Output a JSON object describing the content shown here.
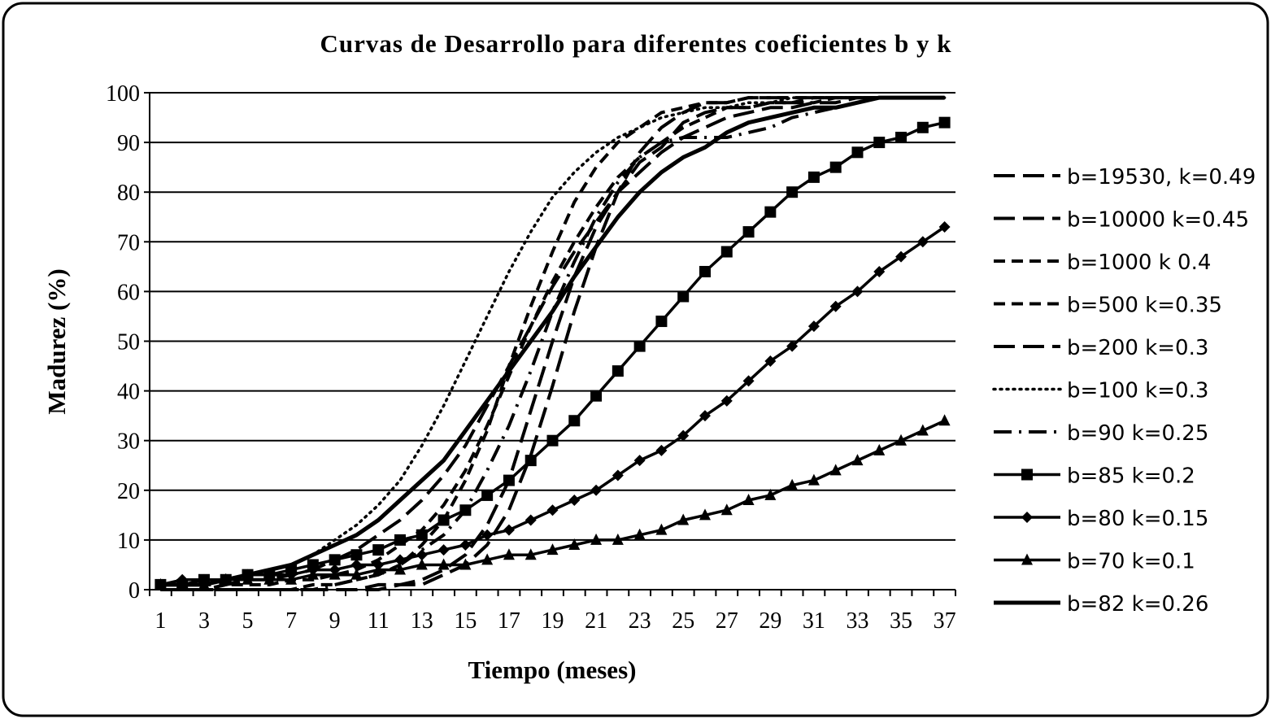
{
  "chart_data": {
    "type": "line",
    "title": "Curvas de Desarrollo para diferentes coeficientes b y k",
    "xlabel": "Tiempo (meses)",
    "ylabel": "Madurez (%)",
    "xlim": [
      1,
      37
    ],
    "ylim": [
      0,
      100
    ],
    "x_ticks": [
      "1",
      "3",
      "5",
      "7",
      "9",
      "11",
      "13",
      "15",
      "17",
      "19",
      "21",
      "23",
      "25",
      "27",
      "29",
      "31",
      "33",
      "35",
      "37"
    ],
    "y_ticks": [
      "0",
      "10",
      "20",
      "30",
      "40",
      "50",
      "60",
      "70",
      "80",
      "90",
      "100"
    ],
    "grid": "horizontal",
    "legend_position": "right",
    "x": [
      1,
      2,
      3,
      4,
      5,
      6,
      7,
      8,
      9,
      10,
      11,
      12,
      13,
      14,
      15,
      16,
      17,
      18,
      19,
      20,
      21,
      22,
      23,
      24,
      25,
      26,
      27,
      28,
      29,
      30,
      31,
      32,
      33,
      34,
      35,
      36,
      37
    ],
    "series": [
      {
        "name": "b=19530, k=0.49",
        "style": "longdash",
        "values": [
          0,
          0,
          0,
          0,
          0,
          0,
          0,
          0,
          0,
          0,
          0,
          1,
          1,
          3,
          5,
          9,
          16,
          27,
          41,
          56,
          69,
          80,
          88,
          93,
          96,
          98,
          98,
          99,
          99,
          99,
          99,
          99,
          99,
          99,
          99,
          99,
          99
        ]
      },
      {
        "name": "b=10000 k=0.45",
        "style": "longdash",
        "values": [
          0,
          0,
          0,
          0,
          0,
          0,
          0,
          0,
          0,
          0,
          1,
          1,
          2,
          4,
          7,
          13,
          22,
          36,
          50,
          63,
          73,
          80,
          86,
          89,
          94,
          96,
          97,
          97,
          98,
          98,
          99,
          99,
          99,
          99,
          99,
          99,
          99
        ]
      },
      {
        "name": "b=1000 k 0.4",
        "style": "dash",
        "values": [
          0,
          0,
          0,
          0,
          0,
          0,
          0,
          1,
          1,
          2,
          3,
          5,
          9,
          14,
          22,
          32,
          45,
          57,
          68,
          78,
          85,
          90,
          93,
          96,
          97,
          98,
          98,
          99,
          99,
          99,
          99,
          99,
          99,
          99,
          99,
          99,
          99
        ]
      },
      {
        "name": "b=500 k=0.35",
        "style": "dash",
        "values": [
          0,
          0,
          0,
          1,
          1,
          1,
          2,
          2,
          3,
          4,
          6,
          9,
          12,
          17,
          24,
          33,
          43,
          53,
          62,
          70,
          77,
          83,
          87,
          90,
          93,
          95,
          97,
          97,
          98,
          98,
          98,
          99,
          99,
          99,
          99,
          99,
          99
        ]
      },
      {
        "name": "b=200 k=0.3",
        "style": "longdash",
        "values": [
          1,
          1,
          1,
          1,
          2,
          2,
          3,
          4,
          6,
          8,
          11,
          14,
          18,
          23,
          29,
          37,
          45,
          53,
          61,
          68,
          74,
          80,
          84,
          88,
          91,
          93,
          95,
          96,
          97,
          97,
          98,
          98,
          99,
          99,
          99,
          99,
          99
        ]
      },
      {
        "name": "b=100 k=0.3",
        "style": "dot",
        "values": [
          1,
          1,
          2,
          2,
          3,
          4,
          5,
          7,
          10,
          13,
          17,
          22,
          29,
          37,
          46,
          55,
          64,
          72,
          79,
          84,
          88,
          91,
          93,
          95,
          96,
          97,
          97,
          98,
          98,
          99,
          99,
          99,
          99,
          99,
          99,
          99,
          99
        ]
      },
      {
        "name": "b=90 k=0.25",
        "style": "dashdot",
        "values": [
          0,
          0,
          0,
          0,
          0,
          0,
          0,
          0,
          1,
          2,
          3,
          5,
          8,
          11,
          16,
          24,
          33,
          44,
          56,
          66,
          75,
          82,
          87,
          90,
          91,
          91,
          91,
          92,
          93,
          95,
          96,
          97,
          98,
          99,
          99,
          99,
          99
        ]
      },
      {
        "name": "b=85 k=0.2",
        "style": "solid",
        "marker": "square",
        "values": [
          1,
          1,
          2,
          2,
          3,
          3,
          4,
          5,
          6,
          7,
          8,
          10,
          11,
          14,
          16,
          19,
          22,
          26,
          30,
          34,
          39,
          44,
          49,
          54,
          59,
          64,
          68,
          72,
          76,
          80,
          83,
          85,
          88,
          90,
          91,
          93,
          94
        ]
      },
      {
        "name": "b=80 k=0.15",
        "style": "solid",
        "marker": "diamond",
        "values": [
          1,
          2,
          2,
          2,
          3,
          3,
          3,
          4,
          4,
          5,
          5,
          6,
          7,
          8,
          9,
          11,
          12,
          14,
          16,
          18,
          20,
          23,
          26,
          28,
          31,
          35,
          38,
          42,
          46,
          49,
          53,
          57,
          60,
          64,
          67,
          70,
          73
        ]
      },
      {
        "name": "b=70 k=0.1",
        "style": "solid",
        "marker": "triangle",
        "values": [
          1,
          1,
          1,
          2,
          2,
          2,
          2,
          3,
          3,
          3,
          4,
          4,
          5,
          5,
          5,
          6,
          7,
          7,
          8,
          9,
          10,
          10,
          11,
          12,
          14,
          15,
          16,
          18,
          19,
          21,
          22,
          24,
          26,
          28,
          30,
          32,
          34
        ]
      },
      {
        "name": "b=82 k=0.26",
        "style": "thick",
        "values": [
          1,
          1,
          1,
          2,
          3,
          4,
          5,
          7,
          9,
          11,
          14,
          18,
          22,
          26,
          32,
          38,
          44,
          50,
          56,
          63,
          69,
          75,
          80,
          84,
          87,
          89,
          92,
          94,
          95,
          96,
          97,
          97,
          98,
          99,
          99,
          99,
          99
        ]
      }
    ]
  }
}
